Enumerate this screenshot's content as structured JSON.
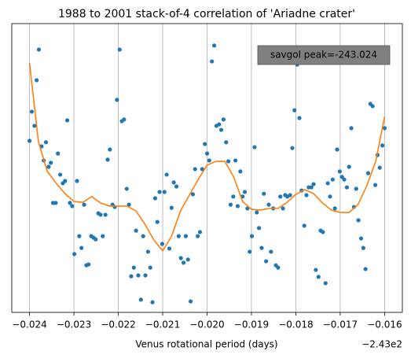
{
  "chart_data": {
    "type": "scatter",
    "title": "1988 to 2001 stack-of-4 correlation of 'Ariadne crater'",
    "xlabel": "Venus rotational period (days)",
    "x_offset_label": "−2.43e2",
    "annotation": "savgol peak=-243.024",
    "xlim": [
      -0.0244,
      -0.0156
    ],
    "ylim": [
      0,
      100
    ],
    "grid": "x",
    "xticks": [
      {
        "value": -0.024,
        "label": "−0.024"
      },
      {
        "value": -0.023,
        "label": "−0.023"
      },
      {
        "value": -0.022,
        "label": "−0.022"
      },
      {
        "value": -0.021,
        "label": "−0.021"
      },
      {
        "value": -0.02,
        "label": "−0.020"
      },
      {
        "value": -0.019,
        "label": "−0.019"
      },
      {
        "value": -0.018,
        "label": "−0.018"
      },
      {
        "value": -0.017,
        "label": "−0.017"
      },
      {
        "value": -0.016,
        "label": "−0.016"
      }
    ],
    "series": [
      {
        "type": "scatter",
        "color": "#1f77b4",
        "x": [
          -0.024,
          -0.02395,
          -0.02389,
          -0.02384,
          -0.02379,
          -0.02373,
          -0.02368,
          -0.02363,
          -0.02357,
          -0.02352,
          -0.02347,
          -0.02341,
          -0.02336,
          -0.02331,
          -0.02325,
          -0.0232,
          -0.02315,
          -0.02309,
          -0.02304,
          -0.02299,
          -0.02293,
          -0.02288,
          -0.02283,
          -0.02277,
          -0.02272,
          -0.02267,
          -0.02261,
          -0.02256,
          -0.02251,
          -0.02245,
          -0.0224,
          -0.02235,
          -0.02229,
          -0.02224,
          -0.02219,
          -0.02213,
          -0.02208,
          -0.02203,
          -0.02197,
          -0.02192,
          -0.02187,
          -0.02181,
          -0.02176,
          -0.02171,
          -0.02165,
          -0.0216,
          -0.02155,
          -0.02149,
          -0.02144,
          -0.02139,
          -0.02133,
          -0.02128,
          -0.02123,
          -0.02117,
          -0.02112,
          -0.02107,
          -0.02101,
          -0.02096,
          -0.02091,
          -0.02085,
          -0.0208,
          -0.02075,
          -0.02069,
          -0.02064,
          -0.02059,
          -0.02053,
          -0.02048,
          -0.02043,
          -0.02037,
          -0.02032,
          -0.02027,
          -0.02021,
          -0.02016,
          -0.02011,
          -0.02005,
          -0.02,
          -0.01995,
          -0.01989,
          -0.01984,
          -0.01979,
          -0.01973,
          -0.01968,
          -0.01963,
          -0.01957,
          -0.01952,
          -0.01947,
          -0.01941,
          -0.01936,
          -0.01931,
          -0.01925,
          -0.0192,
          -0.01915,
          -0.01909,
          -0.01904,
          -0.01899,
          -0.01893,
          -0.01888,
          -0.01883,
          -0.01877,
          -0.01872,
          -0.01867,
          -0.01861,
          -0.01856,
          -0.01851,
          -0.01845,
          -0.0184,
          -0.01835,
          -0.01829,
          -0.01824,
          -0.01819,
          -0.01813,
          -0.01808,
          -0.01803,
          -0.01797,
          -0.01792,
          -0.01787,
          -0.01781,
          -0.01776,
          -0.01771,
          -0.01765,
          -0.0176,
          -0.01755,
          -0.01749,
          -0.01744,
          -0.01739,
          -0.01733,
          -0.01728,
          -0.01723,
          -0.01717,
          -0.01712,
          -0.01707,
          -0.01701,
          -0.01696,
          -0.01691,
          -0.01685,
          -0.0168,
          -0.01675,
          -0.01669,
          -0.01664,
          -0.01659,
          -0.01653,
          -0.01648,
          -0.01643,
          -0.01637,
          -0.01632,
          -0.01627,
          -0.01621,
          -0.01616,
          -0.01611,
          -0.01605,
          -0.016
        ],
        "values": [
          59.4,
          69.5,
          64.6,
          80.4,
          91,
          57.5,
          52.6,
          58.9,
          50.4,
          51.8,
          37.9,
          37.9,
          55,
          47.7,
          44.7,
          45.5,
          66.5,
          37.9,
          36.8,
          20.2,
          45.5,
          26.4,
          22.3,
          37.3,
          16.3,
          16.6,
          26.4,
          25.9,
          25.3,
          34.3,
          33.8,
          26.4,
          33.8,
          52.9,
          56.4,
          37.3,
          36.5,
          73.6,
          91,
          66.2,
          66.8,
          42.8,
          37.3,
          12.5,
          15.5,
          28.3,
          12.8,
          4.4,
          26.4,
          12.8,
          21,
          15.5,
          3.5,
          39.5,
          31.3,
          41.7,
          23.7,
          41.7,
          47.7,
          22.1,
          36.2,
          45,
          43.6,
          26.4,
          18.8,
          17.2,
          26.4,
          18.3,
          3.8,
          40.9,
          49.6,
          26.4,
          27.8,
          49.6,
          58.3,
          55,
          52.6,
          86.9,
          92.4,
          64.6,
          65.1,
          63.2,
          66.8,
          58.9,
          52.3,
          37.3,
          40.1,
          52.6,
          36.8,
          48.8,
          40.1,
          41.7,
          36,
          21,
          26.4,
          57.2,
          34.6,
          29.2,
          22.3,
          41.1,
          17.7,
          37.3,
          21,
          36,
          16.3,
          15.5,
          40.1,
          36,
          40.6,
          40.1,
          40.6,
          56.9,
          70,
          85.8,
          67.3,
          42.2,
          30,
          40.6,
          43.3,
          43.3,
          44.4,
          14.7,
          12.3,
          28.3,
          27.8,
          10.1,
          44.7,
          40.1,
          46,
          36,
          56.4,
          48.8,
          46.9,
          46,
          43.3,
          50.4,
          63.8,
          36.5,
          42.8,
          31.9,
          25.6,
          22.3,
          15,
          48.2,
          72.2,
          71.4,
          44.1,
          54.5,
          50.1,
          57.8,
          63.8
        ]
      },
      {
        "type": "line",
        "color": "#ff7f0e",
        "x": [
          -0.024,
          -0.0238,
          -0.0236,
          -0.0234,
          -0.0232,
          -0.023,
          -0.0228,
          -0.0226,
          -0.0224,
          -0.0222,
          -0.022,
          -0.0218,
          -0.0216,
          -0.0214,
          -0.0212,
          -0.021,
          -0.0208,
          -0.0206,
          -0.0204,
          -0.0202,
          -0.02,
          -0.0198,
          -0.0196,
          -0.0194,
          -0.0192,
          -0.019,
          -0.0188,
          -0.0186,
          -0.0184,
          -0.0182,
          -0.018,
          -0.0178,
          -0.0176,
          -0.0174,
          -0.0172,
          -0.017,
          -0.0168,
          -0.0166,
          -0.0164,
          -0.0162,
          -0.016
        ],
        "values": [
          86.4,
          59.1,
          48.8,
          44.7,
          41.1,
          38.4,
          38.1,
          40.1,
          37.9,
          36.8,
          36.8,
          36.8,
          35.1,
          30.5,
          25.1,
          21.3,
          26.4,
          35.1,
          40.6,
          46,
          51,
          52.3,
          52.3,
          46.9,
          38.4,
          35.7,
          35.4,
          36,
          36,
          38.1,
          40.9,
          42.5,
          41.1,
          37.9,
          35.4,
          34.6,
          34.6,
          37.3,
          43.9,
          52.3,
          67.8
        ]
      }
    ]
  }
}
